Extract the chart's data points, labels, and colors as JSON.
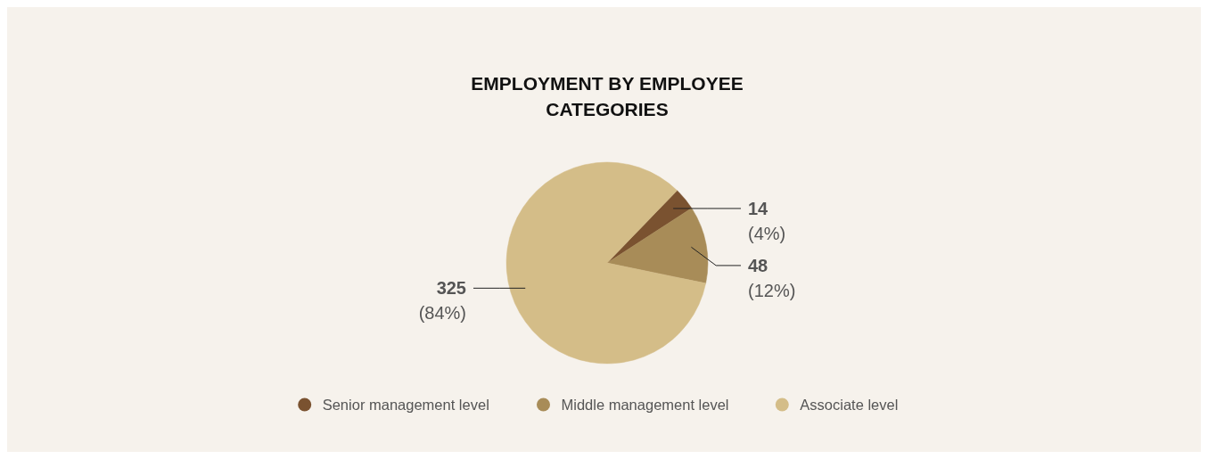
{
  "chart_data": {
    "type": "pie",
    "title": "EMPLOYMENT BY EMPLOYEE CATEGORIES",
    "categories": [
      "Senior management level",
      "Middle management level",
      "Associate level"
    ],
    "values": [
      14,
      48,
      325
    ],
    "colors": [
      "#7a5230",
      "#a88c58",
      "#d4bd88"
    ],
    "value_labels": [
      "14\n(4%)",
      "48\n(12%)",
      "325\n(84%)"
    ],
    "legend": "bottom"
  }
}
